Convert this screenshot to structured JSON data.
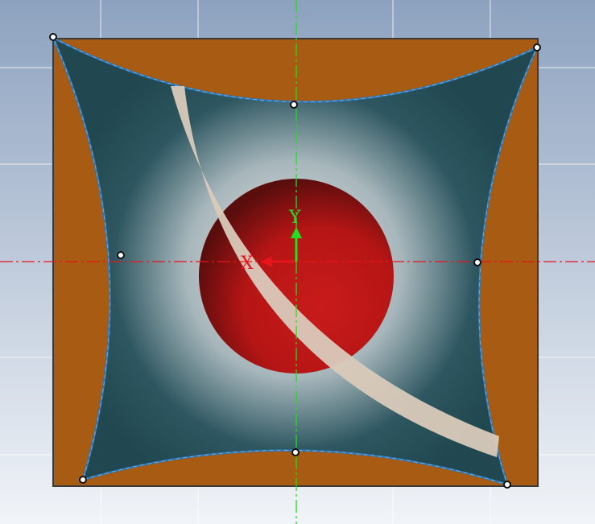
{
  "viewport": {
    "background_top": "#8da2bf",
    "background_bottom": "#f1f4f8",
    "grid_color": "#ffffff"
  },
  "axes": {
    "x_label": "X",
    "y_label": "Y",
    "x_color": "#e8141b",
    "y_color": "#1fe01f"
  },
  "model": {
    "plate_color": "#a75b13",
    "plate_edge": "#3a3a3a",
    "surface_color": "#2d5660",
    "surface_highlight": "#f3ebe2",
    "surface_edge": "#2e78b8",
    "sphere_color": "#b61515",
    "arc_color": "#d9cabb",
    "control_point_color": "#ffffff"
  }
}
